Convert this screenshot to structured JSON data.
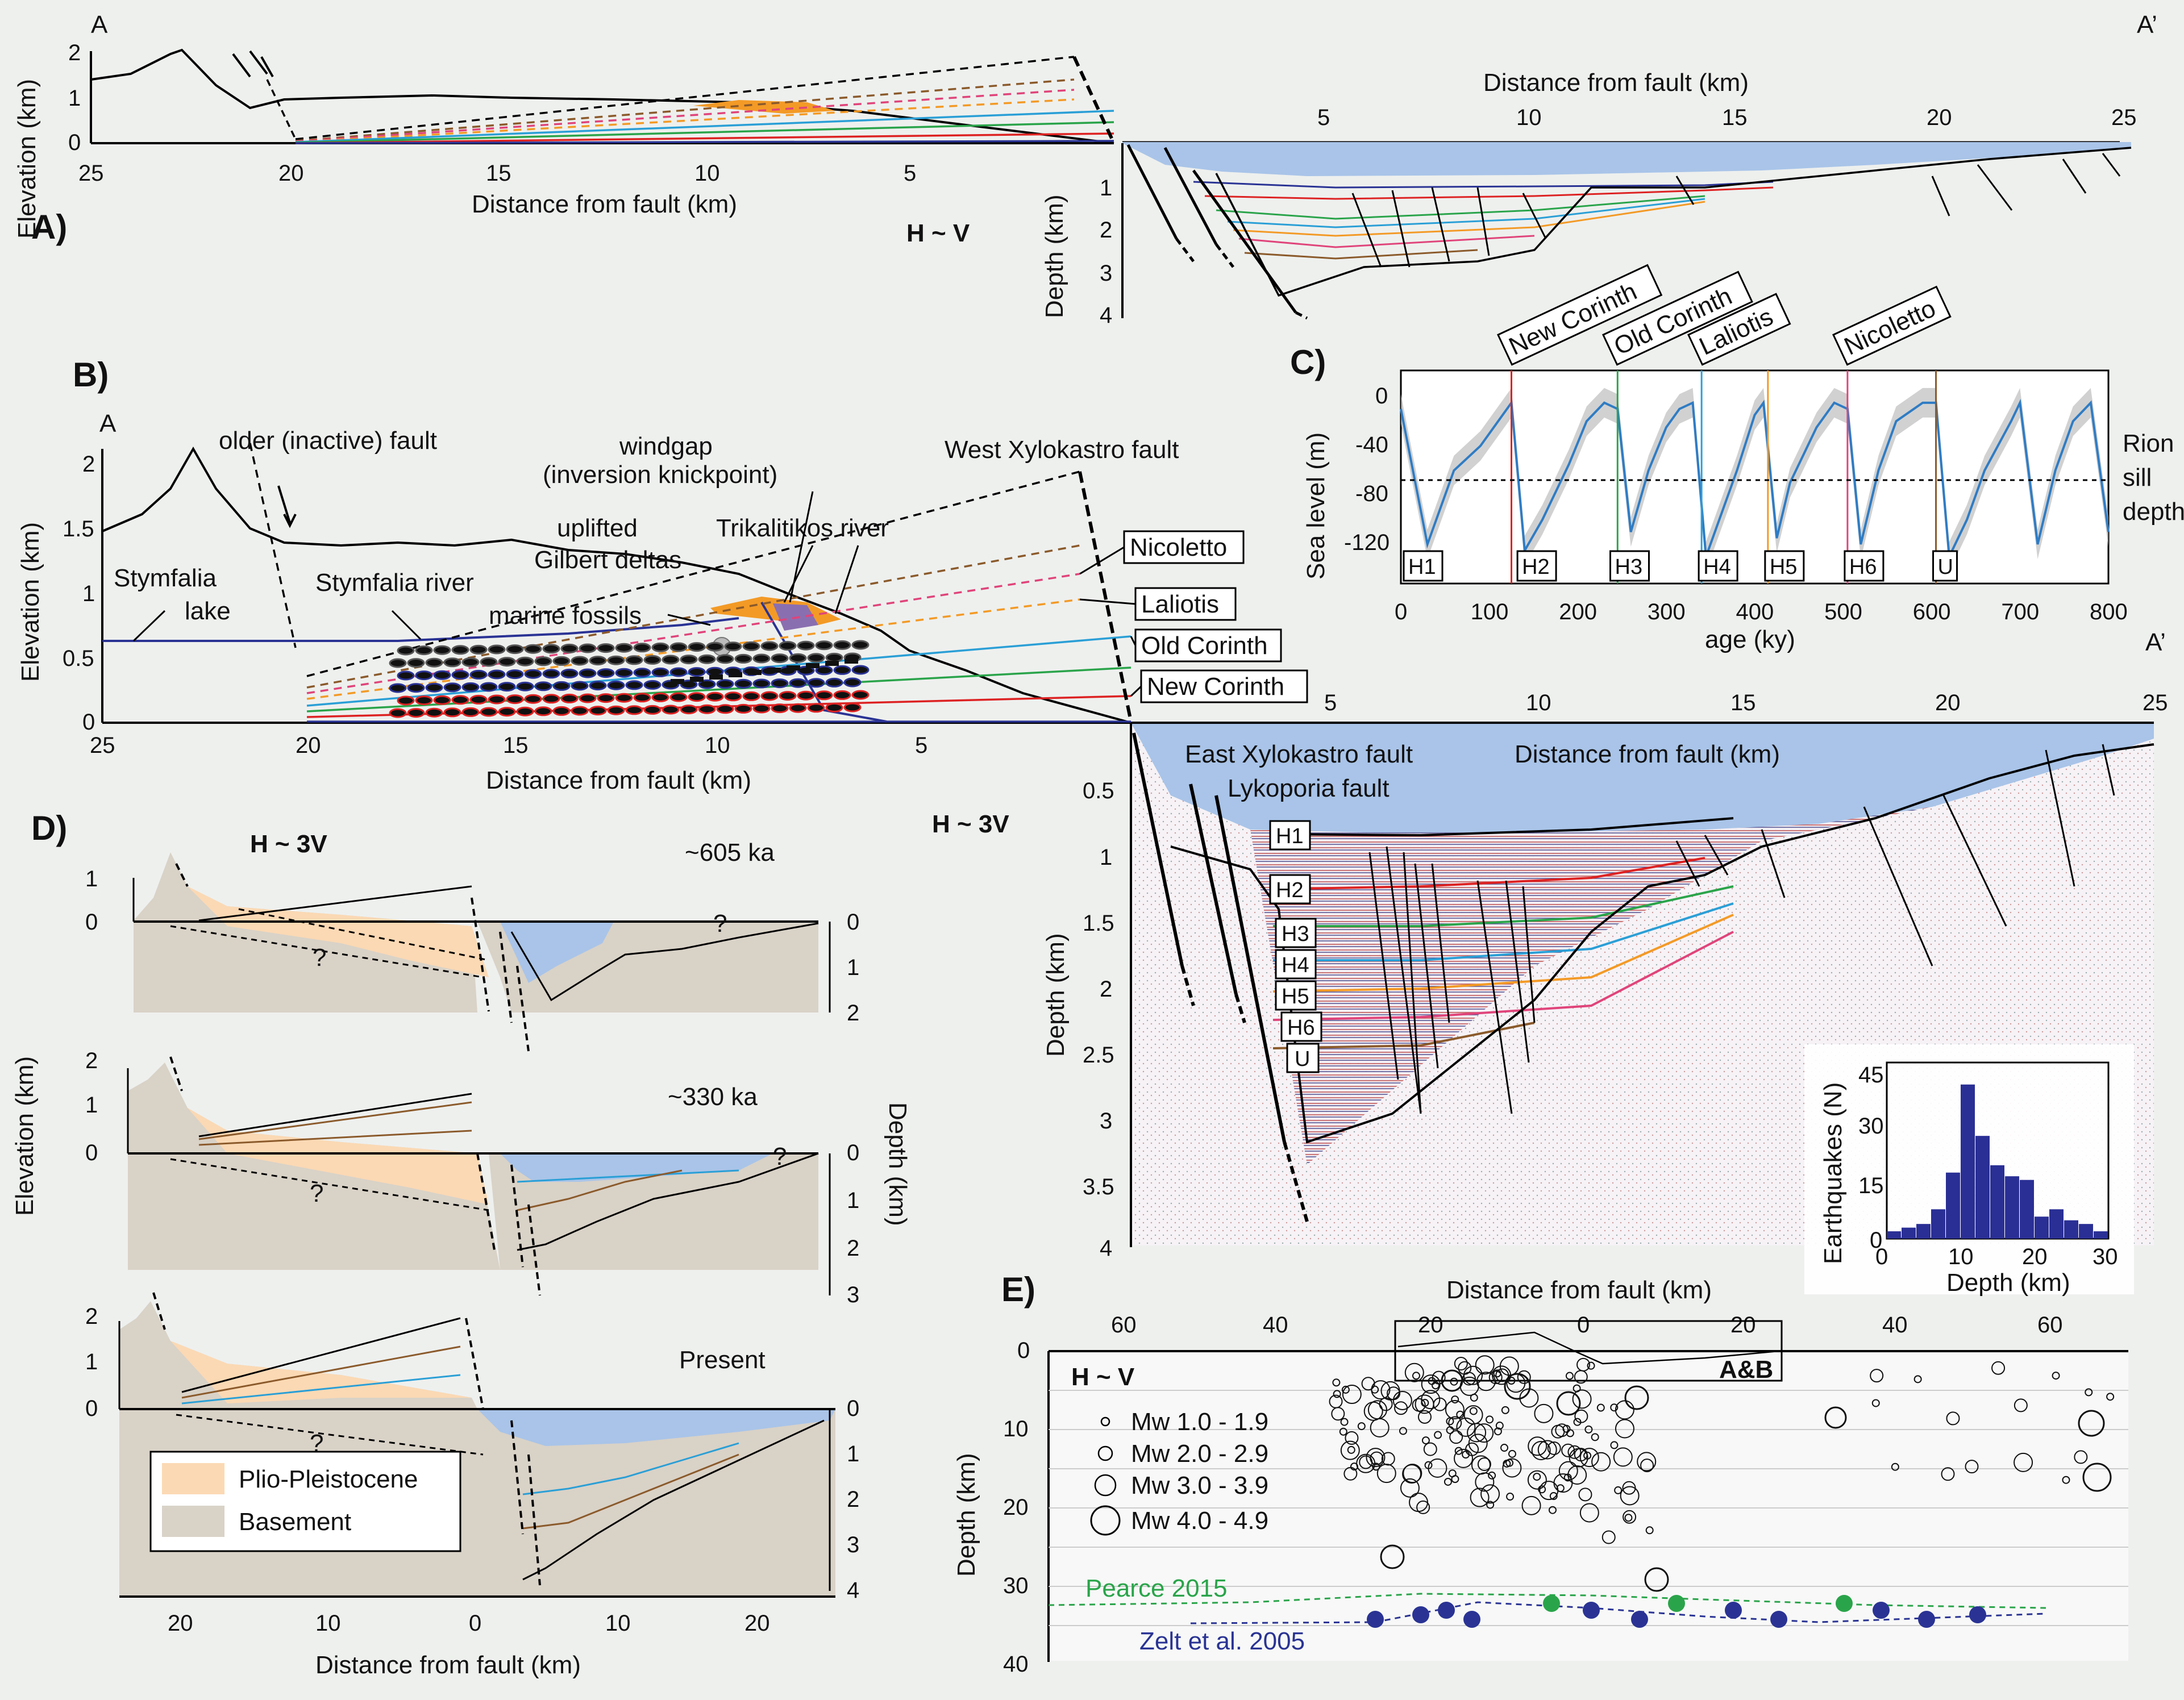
{
  "panel_labels": {
    "a": "A)",
    "b": "B)",
    "c": "C)",
    "d": "D)",
    "e": "E)"
  },
  "profile_ends": {
    "start": "A",
    "end": "A’"
  },
  "axes": {
    "elevation": "Elevation (km)",
    "depth": "Depth (km)",
    "distance": "Distance from fault (km)",
    "sea_level": "Sea level (m)",
    "age": "age (ky)",
    "earthquakes": "Earthquakes (N)",
    "depth_km": "Depth (km)"
  },
  "scales": {
    "a": "H ~ V",
    "b": "H ~ 3V",
    "d": "H ~ 3V",
    "e": "H ~ V"
  },
  "ticks": {
    "dist_left": [
      "25",
      "20",
      "15",
      "10",
      "5"
    ],
    "dist_right": [
      "5",
      "10",
      "15",
      "20",
      "25"
    ],
    "elev_a": [
      "2",
      "1",
      "0"
    ],
    "depth_a": [
      "1",
      "2",
      "3",
      "4"
    ],
    "elev_b": [
      "2",
      "1.5",
      "1",
      "0.5",
      "0"
    ],
    "depth_b": [
      "0.5",
      "1",
      "1.5",
      "2",
      "2.5",
      "3",
      "3.5",
      "4"
    ],
    "sea_level": [
      "0",
      "-40",
      "-80",
      "-120"
    ],
    "age": [
      "0",
      "100",
      "200",
      "300",
      "400",
      "500",
      "600",
      "700",
      "800"
    ],
    "hist_y": [
      "45",
      "30",
      "15",
      "0"
    ],
    "hist_x": [
      "10",
      "20",
      "30"
    ],
    "d_left": [
      "20",
      "10",
      "0",
      "10",
      "20"
    ],
    "e_x": [
      "60",
      "40",
      "20",
      "0",
      "20",
      "40",
      "60"
    ],
    "e_y": [
      "0",
      "10",
      "20",
      "30",
      "40"
    ],
    "d_elev1": [
      "1",
      "0"
    ],
    "d_elev2": [
      "2",
      "1",
      "0"
    ],
    "d_depth1": [
      "0",
      "1",
      "2"
    ],
    "d_depth2": [
      "0",
      "1",
      "2",
      "3"
    ],
    "d_depth3": [
      "0",
      "1",
      "2",
      "3",
      "4"
    ]
  },
  "b_annotations": {
    "older_fault": "older (inactive) fault",
    "windgap": "windgap",
    "inversion": "(inversion knickpoint)",
    "west_fault": "West Xylokastro fault",
    "uplifted": "uplifted",
    "gilbert": "Gilbert deltas",
    "trikalitikos": "Trikalitikos river",
    "stymfalia": "Stymfalia",
    "lake": "lake",
    "stymfalia_river": "Stymfalia river",
    "marine_fossils": "marine fossils",
    "east_fault": "East Xylokastro fault",
    "lykoporia": "Lykoporia fault"
  },
  "terraces": [
    "Nicoletto",
    "Laliotis",
    "Old Corinth",
    "New Corinth"
  ],
  "c_highstands": [
    "New Corinth",
    "Old Corinth",
    "Laliotis",
    "Nicoletto"
  ],
  "horizons": [
    "H1",
    "H2",
    "H3",
    "H4",
    "H5",
    "H6",
    "U"
  ],
  "sill": {
    "l1": "Rion",
    "l2": "sill",
    "l3": "depth"
  },
  "sea_level_curve": {
    "x": [
      0,
      30,
      60,
      90,
      110,
      125,
      140,
      160,
      190,
      210,
      230,
      245,
      260,
      280,
      300,
      315,
      330,
      345,
      360,
      380,
      400,
      410,
      425,
      440,
      470,
      490,
      505,
      520,
      540,
      560,
      590,
      605,
      620,
      640,
      660,
      690,
      700,
      720,
      740,
      760,
      780,
      800
    ],
    "y": [
      -10,
      -120,
      -60,
      -40,
      -20,
      -5,
      -125,
      -100,
      -55,
      -20,
      -5,
      -10,
      -110,
      -60,
      -25,
      -10,
      -5,
      -130,
      -100,
      -60,
      -15,
      -5,
      -115,
      -70,
      -25,
      -5,
      -10,
      -120,
      -60,
      -20,
      -5,
      -5,
      -130,
      -100,
      -60,
      -20,
      -5,
      -120,
      -60,
      -20,
      -5,
      -110
    ]
  },
  "histogram": {
    "bin_start": [
      0,
      2,
      4,
      6,
      8,
      10,
      12,
      14,
      16,
      18,
      20,
      22,
      24,
      26,
      28
    ],
    "counts": [
      2,
      3,
      4,
      8,
      18,
      42,
      28,
      20,
      17,
      16,
      6,
      8,
      5,
      4,
      2
    ]
  },
  "d_ages": [
    "~605 ka",
    "~330 ka",
    "Present"
  ],
  "d_legend": [
    "Plio-Pleistocene",
    "Basement"
  ],
  "e_legend": [
    "Mw 1.0 - 1.9",
    "Mw 2.0 - 2.9",
    "Mw 3.0 - 3.9",
    "Mw 4.0 - 4.9"
  ],
  "e_box": "A&B",
  "e_refs": [
    "Pearce 2015",
    "Zelt et al. 2005"
  ],
  "colors": {
    "water": "#a9c4e8",
    "sediment": "#fbd9b4",
    "basement": "#d9d2c7",
    "delta": "#f39a26",
    "pearce": "#2aa44a",
    "zelt": "#2a3394",
    "sealevel": "#2f7cc4",
    "band": "#bdbdbd",
    "hist": "#2a2f95"
  }
}
